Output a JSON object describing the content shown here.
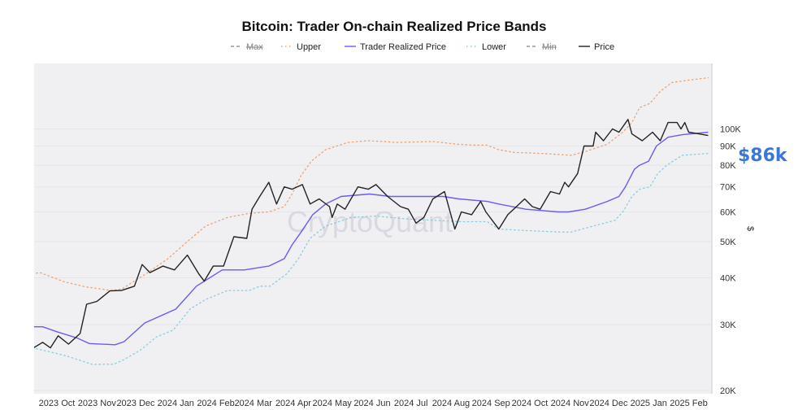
{
  "chart_data": {
    "type": "line",
    "title": "Bitcoin: Trader On-chain Realized Price Bands",
    "ylabel": "$",
    "yscale": "log",
    "ylim": [
      20000,
      149000
    ],
    "xlim": [
      "2023-09-12",
      "2025-02-18"
    ],
    "grid": true,
    "legend_position": "top",
    "watermark": "CryptoQuant",
    "annotation": "$86k",
    "annotation_color": "#3a78d8",
    "y_ticks": [
      {
        "value": 20000,
        "label": "20K"
      },
      {
        "value": 30000,
        "label": "30K"
      },
      {
        "value": 40000,
        "label": "40K"
      },
      {
        "value": 50000,
        "label": "50K"
      },
      {
        "value": 60000,
        "label": "60K"
      },
      {
        "value": 70000,
        "label": "70K"
      },
      {
        "value": 80000,
        "label": "80K"
      },
      {
        "value": 90000,
        "label": "90K"
      },
      {
        "value": 100000,
        "label": "100K"
      }
    ],
    "x_ticks": [
      {
        "date": "2023-10-01",
        "label": "2023 Oct"
      },
      {
        "date": "2023-11-01",
        "label": "2023 Nov"
      },
      {
        "date": "2023-12-01",
        "label": "2023 Dec"
      },
      {
        "date": "2024-01-01",
        "label": "2024 Jan"
      },
      {
        "date": "2024-02-01",
        "label": "2024 Feb"
      },
      {
        "date": "2024-03-01",
        "label": "2024 Mar"
      },
      {
        "date": "2024-04-01",
        "label": "2024 Apr"
      },
      {
        "date": "2024-05-01",
        "label": "2024 May"
      },
      {
        "date": "2024-06-01",
        "label": "2024 Jun"
      },
      {
        "date": "2024-07-01",
        "label": "2024 Jul"
      },
      {
        "date": "2024-08-01",
        "label": "2024 Aug"
      },
      {
        "date": "2024-09-01",
        "label": "2024 Sep"
      },
      {
        "date": "2024-10-01",
        "label": "2024 Oct"
      },
      {
        "date": "2024-11-01",
        "label": "2024 Nov"
      },
      {
        "date": "2024-12-01",
        "label": "2024 Dec"
      },
      {
        "date": "2025-01-01",
        "label": "2025 Jan"
      },
      {
        "date": "2025-02-01",
        "label": "2025 Feb"
      }
    ],
    "legend": [
      {
        "name": "Max",
        "color": "#8a9aa8",
        "style": "dashed",
        "strike": true
      },
      {
        "name": "Upper",
        "color": "#f0a070",
        "style": "dotted",
        "strike": false
      },
      {
        "name": "Trader Realized Price",
        "color": "#6a5cf0",
        "style": "solid",
        "strike": false
      },
      {
        "name": "Lower",
        "color": "#88cce0",
        "style": "dotted",
        "strike": false
      },
      {
        "name": "Min",
        "color": "#8a9aa8",
        "style": "dashed",
        "strike": true
      },
      {
        "name": "Price",
        "color": "#222222",
        "style": "solid",
        "strike": false
      }
    ],
    "series": [
      {
        "name": "Upper",
        "color": "#f0a070",
        "style": "dotted",
        "points": [
          [
            "2023-09-12",
            41000
          ],
          [
            "2023-09-18",
            41300
          ],
          [
            "2023-10-07",
            39000
          ],
          [
            "2023-10-24",
            37800
          ],
          [
            "2023-11-12",
            37000
          ],
          [
            "2023-11-20",
            37300
          ],
          [
            "2023-12-09",
            41000
          ],
          [
            "2023-12-26",
            45000
          ],
          [
            "2024-01-10",
            50000
          ],
          [
            "2024-01-24",
            55000
          ],
          [
            "2024-02-10",
            58000
          ],
          [
            "2024-02-27",
            59500
          ],
          [
            "2024-03-13",
            60000
          ],
          [
            "2024-03-25",
            62000
          ],
          [
            "2024-03-31",
            67000
          ],
          [
            "2024-04-07",
            75000
          ],
          [
            "2024-04-15",
            82000
          ],
          [
            "2024-04-26",
            88000
          ],
          [
            "2024-05-13",
            92000
          ],
          [
            "2024-05-29",
            93000
          ],
          [
            "2024-06-10",
            92500
          ],
          [
            "2024-06-19",
            92000
          ],
          [
            "2024-07-18",
            92500
          ],
          [
            "2024-08-06",
            91000
          ],
          [
            "2024-08-19",
            90500
          ],
          [
            "2024-08-29",
            90500
          ],
          [
            "2024-09-07",
            88000
          ],
          [
            "2024-09-19",
            86500
          ],
          [
            "2024-10-10",
            86000
          ],
          [
            "2024-11-02",
            85000
          ],
          [
            "2024-11-13",
            87000
          ],
          [
            "2024-11-30",
            91000
          ],
          [
            "2024-12-12",
            98000
          ],
          [
            "2024-12-19",
            104000
          ],
          [
            "2024-12-25",
            114000
          ],
          [
            "2025-01-02",
            117000
          ],
          [
            "2025-01-10",
            126000
          ],
          [
            "2025-01-19",
            133000
          ],
          [
            "2025-02-01",
            135000
          ],
          [
            "2025-02-16",
            137000
          ]
        ]
      },
      {
        "name": "Lower",
        "color": "#88cce0",
        "style": "dotted",
        "points": [
          [
            "2023-09-12",
            26000
          ],
          [
            "2023-09-25",
            25400
          ],
          [
            "2023-10-09",
            24700
          ],
          [
            "2023-10-28",
            23500
          ],
          [
            "2023-11-14",
            23500
          ],
          [
            "2023-11-22",
            24200
          ],
          [
            "2023-12-05",
            25700
          ],
          [
            "2023-12-17",
            27800
          ],
          [
            "2023-12-30",
            29000
          ],
          [
            "2024-01-12",
            33000
          ],
          [
            "2024-01-24",
            35000
          ],
          [
            "2024-02-10",
            37000
          ],
          [
            "2024-02-27",
            37000
          ],
          [
            "2024-03-06",
            38000
          ],
          [
            "2024-03-14",
            38000
          ],
          [
            "2024-03-27",
            41000
          ],
          [
            "2024-04-05",
            45000
          ],
          [
            "2024-04-14",
            51000
          ],
          [
            "2024-04-26",
            55000
          ],
          [
            "2024-05-16",
            58000
          ],
          [
            "2024-06-04",
            58500
          ],
          [
            "2024-06-27",
            57500
          ],
          [
            "2024-07-18",
            57000
          ],
          [
            "2024-08-09",
            56500
          ],
          [
            "2024-08-29",
            56500
          ],
          [
            "2024-09-07",
            54000
          ],
          [
            "2024-09-28",
            53500
          ],
          [
            "2024-10-25",
            53000
          ],
          [
            "2024-11-02",
            53000
          ],
          [
            "2024-11-19",
            55000
          ],
          [
            "2024-12-06",
            57000
          ],
          [
            "2024-12-12",
            60000
          ],
          [
            "2024-12-19",
            66000
          ],
          [
            "2024-12-25",
            69000
          ],
          [
            "2025-01-02",
            70000
          ],
          [
            "2025-01-08",
            76000
          ],
          [
            "2025-01-15",
            80000
          ],
          [
            "2025-01-27",
            85000
          ],
          [
            "2025-02-16",
            86000
          ]
        ]
      },
      {
        "name": "Trader Realized Price",
        "color": "#6a5cf0",
        "style": "solid",
        "points": [
          [
            "2023-09-12",
            29600
          ],
          [
            "2023-09-20",
            29600
          ],
          [
            "2023-10-01",
            28700
          ],
          [
            "2023-10-17",
            27600
          ],
          [
            "2023-10-26",
            26700
          ],
          [
            "2023-11-15",
            26500
          ],
          [
            "2023-11-22",
            27000
          ],
          [
            "2023-12-08",
            30300
          ],
          [
            "2024-01-01",
            33000
          ],
          [
            "2024-01-17",
            38000
          ],
          [
            "2024-02-06",
            42000
          ],
          [
            "2024-02-23",
            42000
          ],
          [
            "2024-03-13",
            43000
          ],
          [
            "2024-03-25",
            45000
          ],
          [
            "2024-03-31",
            49000
          ],
          [
            "2024-04-07",
            53000
          ],
          [
            "2024-04-16",
            59000
          ],
          [
            "2024-04-26",
            63000
          ],
          [
            "2024-05-08",
            66000
          ],
          [
            "2024-05-30",
            67000
          ],
          [
            "2024-06-15",
            66000
          ],
          [
            "2024-07-10",
            66000
          ],
          [
            "2024-07-26",
            66000
          ],
          [
            "2024-08-07",
            65000
          ],
          [
            "2024-08-29",
            64000
          ],
          [
            "2024-09-07",
            63000
          ],
          [
            "2024-09-28",
            61000
          ],
          [
            "2024-10-23",
            60000
          ],
          [
            "2024-10-31",
            60000
          ],
          [
            "2024-11-13",
            61000
          ],
          [
            "2024-11-30",
            64000
          ],
          [
            "2024-12-09",
            66000
          ],
          [
            "2024-12-14",
            70000
          ],
          [
            "2024-12-21",
            78000
          ],
          [
            "2024-12-25",
            80000
          ],
          [
            "2025-01-01",
            82000
          ],
          [
            "2025-01-07",
            90000
          ],
          [
            "2025-01-16",
            95000
          ],
          [
            "2025-01-27",
            96500
          ],
          [
            "2025-02-16",
            98000
          ]
        ]
      },
      {
        "name": "Price",
        "color": "#222222",
        "style": "solid",
        "points": [
          [
            "2023-09-13",
            26000
          ],
          [
            "2023-09-20",
            26900
          ],
          [
            "2023-09-26",
            26000
          ],
          [
            "2023-10-02",
            28000
          ],
          [
            "2023-10-10",
            26600
          ],
          [
            "2023-10-19",
            28400
          ],
          [
            "2023-10-24",
            34000
          ],
          [
            "2023-11-01",
            34600
          ],
          [
            "2023-11-11",
            36900
          ],
          [
            "2023-11-20",
            37000
          ],
          [
            "2023-11-30",
            38000
          ],
          [
            "2023-12-06",
            43400
          ],
          [
            "2023-12-12",
            41300
          ],
          [
            "2023-12-22",
            43000
          ],
          [
            "2023-12-31",
            42000
          ],
          [
            "2024-01-10",
            46000
          ],
          [
            "2024-01-19",
            40900
          ],
          [
            "2024-01-23",
            39200
          ],
          [
            "2024-01-30",
            43000
          ],
          [
            "2024-02-07",
            43000
          ],
          [
            "2024-02-15",
            51500
          ],
          [
            "2024-02-25",
            51000
          ],
          [
            "2024-02-29",
            61000
          ],
          [
            "2024-03-06",
            66000
          ],
          [
            "2024-03-13",
            72000
          ],
          [
            "2024-03-19",
            63000
          ],
          [
            "2024-03-25",
            70000
          ],
          [
            "2024-03-31",
            69000
          ],
          [
            "2024-04-08",
            71000
          ],
          [
            "2024-04-14",
            63000
          ],
          [
            "2024-04-21",
            65000
          ],
          [
            "2024-04-29",
            62000
          ],
          [
            "2024-05-01",
            58000
          ],
          [
            "2024-05-05",
            63000
          ],
          [
            "2024-05-11",
            61000
          ],
          [
            "2024-05-21",
            70000
          ],
          [
            "2024-05-29",
            69000
          ],
          [
            "2024-06-04",
            71000
          ],
          [
            "2024-06-13",
            66000
          ],
          [
            "2024-06-23",
            62000
          ],
          [
            "2024-06-29",
            61000
          ],
          [
            "2024-07-05",
            56000
          ],
          [
            "2024-07-11",
            58000
          ],
          [
            "2024-07-18",
            65000
          ],
          [
            "2024-07-27",
            68000
          ],
          [
            "2024-08-04",
            54000
          ],
          [
            "2024-08-09",
            60000
          ],
          [
            "2024-08-17",
            59000
          ],
          [
            "2024-08-24",
            64000
          ],
          [
            "2024-08-28",
            60000
          ],
          [
            "2024-09-07",
            54000
          ],
          [
            "2024-09-14",
            59000
          ],
          [
            "2024-09-27",
            65000
          ],
          [
            "2024-10-03",
            62000
          ],
          [
            "2024-10-09",
            61000
          ],
          [
            "2024-10-17",
            68000
          ],
          [
            "2024-10-24",
            67000
          ],
          [
            "2024-10-28",
            72000
          ],
          [
            "2024-10-31",
            70000
          ],
          [
            "2024-11-07",
            76000
          ],
          [
            "2024-11-12",
            90000
          ],
          [
            "2024-11-19",
            90000
          ],
          [
            "2024-11-21",
            98000
          ],
          [
            "2024-11-27",
            93000
          ],
          [
            "2024-12-04",
            100000
          ],
          [
            "2024-12-09",
            98000
          ],
          [
            "2024-12-16",
            106000
          ],
          [
            "2024-12-19",
            97000
          ],
          [
            "2024-12-27",
            93000
          ],
          [
            "2025-01-04",
            98000
          ],
          [
            "2025-01-10",
            93000
          ],
          [
            "2025-01-16",
            104000
          ],
          [
            "2025-01-23",
            104000
          ],
          [
            "2025-01-26",
            100000
          ],
          [
            "2025-01-29",
            104000
          ],
          [
            "2025-02-01",
            98000
          ],
          [
            "2025-02-09",
            97000
          ],
          [
            "2025-02-16",
            96000
          ]
        ]
      }
    ]
  }
}
